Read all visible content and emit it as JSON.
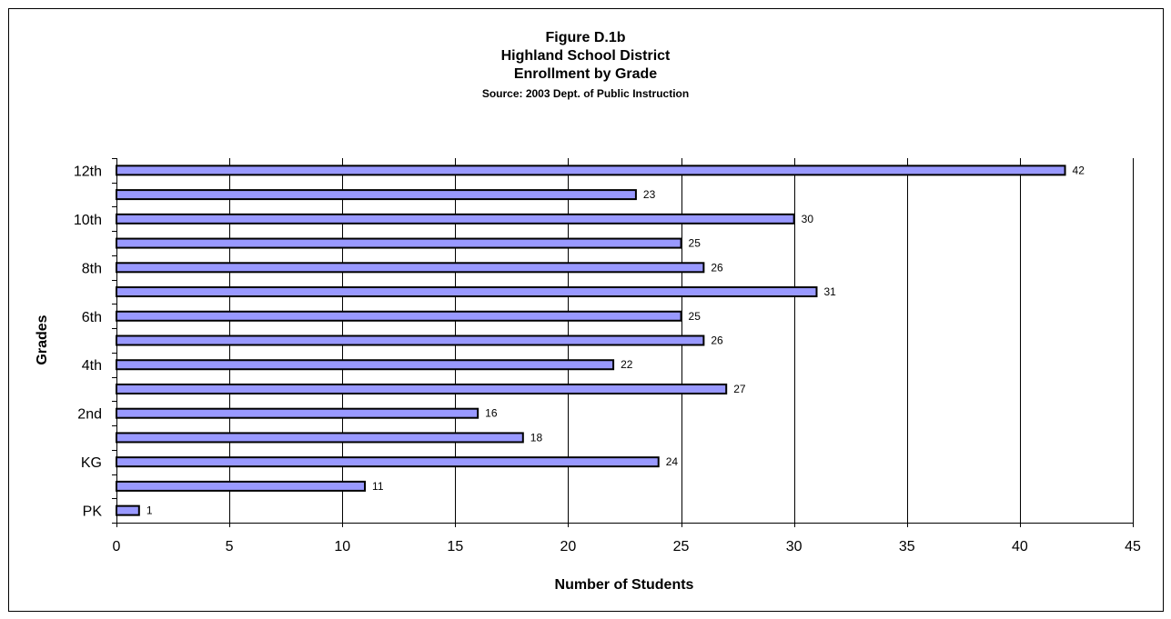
{
  "chart_data": {
    "type": "bar",
    "orientation": "horizontal",
    "title_lines": [
      "Figure D.1b",
      "Highland School District",
      "Enrollment by Grade"
    ],
    "subtitle": "Source:  2003 Dept. of Public Instruction",
    "xlabel": "Number of Students",
    "ylabel": "Grades",
    "xlim": [
      0,
      45
    ],
    "xticks": [
      0,
      5,
      10,
      15,
      20,
      25,
      30,
      35,
      40,
      45
    ],
    "grid": "vertical",
    "bar_color": "#9999ff",
    "categories": [
      "PK",
      "",
      "KG",
      "",
      "2nd",
      "",
      "4th",
      "",
      "6th",
      "",
      "8th",
      "",
      "10th",
      "",
      "12th"
    ],
    "values": [
      1,
      11,
      24,
      18,
      16,
      27,
      22,
      26,
      25,
      31,
      26,
      25,
      30,
      23,
      42
    ]
  }
}
